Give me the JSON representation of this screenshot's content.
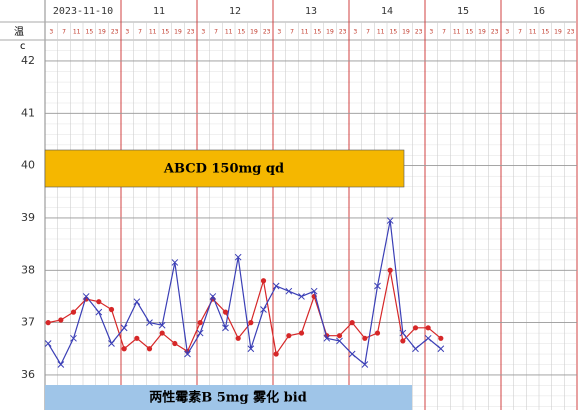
{
  "chart_data": {
    "type": "line",
    "days": [
      "2023-11-10",
      "11",
      "12",
      "13",
      "14",
      "15",
      "16"
    ],
    "hours": [
      3,
      7,
      11,
      15,
      19,
      23
    ],
    "y_label": "温",
    "y_unit": "c",
    "series": [
      {
        "name": "red",
        "color": "#d62728",
        "marker": "circle",
        "values": [
          37.0,
          37.05,
          37.2,
          37.45,
          37.4,
          37.25,
          36.5,
          36.7,
          36.5,
          36.8,
          36.6,
          36.45,
          37.0,
          37.45,
          37.2,
          36.7,
          37.0,
          37.8,
          36.4,
          36.75,
          36.8,
          37.5,
          36.75,
          36.75,
          37.0,
          36.7,
          36.8,
          38.0,
          36.65,
          36.9,
          36.9,
          36.7
        ]
      },
      {
        "name": "blue",
        "color": "#3b3fb6",
        "marker": "x",
        "values": [
          36.6,
          36.2,
          36.7,
          37.5,
          37.2,
          36.6,
          36.9,
          37.4,
          37.0,
          36.95,
          38.15,
          36.4,
          36.8,
          37.5,
          36.9,
          38.25,
          36.5,
          37.25,
          37.7,
          37.6,
          37.5,
          37.6,
          36.7,
          36.65,
          36.4,
          36.2,
          37.7,
          38.95,
          36.8,
          36.5,
          36.7,
          36.5
        ]
      }
    ],
    "ylim": [
      35.33,
      42.4
    ],
    "yticks": [
      36,
      37,
      38,
      39,
      40,
      41,
      42
    ],
    "annotations": [
      {
        "text": "ABCD 150mg qd",
        "color": "#f5b700"
      },
      {
        "text": "两性霉素B  5mg 雾化 bid",
        "color": "#9fc5e8"
      }
    ]
  }
}
